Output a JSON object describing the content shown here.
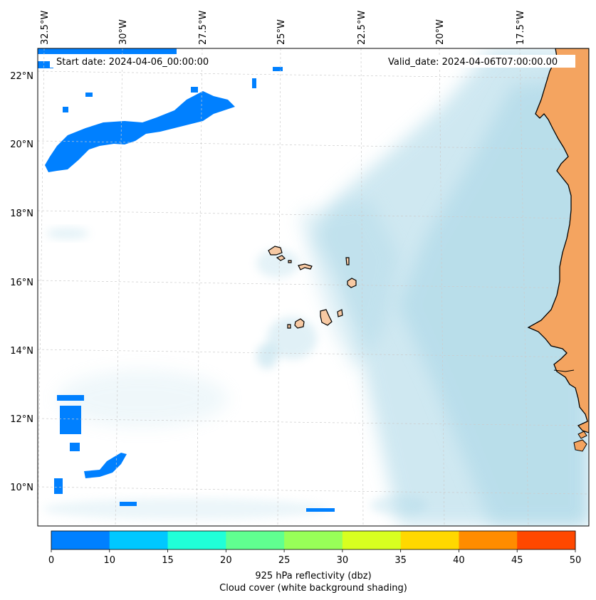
{
  "header": {
    "start_date": "Start date: 2024-04-06_00:00:00",
    "valid_date": "Valid_date: 2024-04-06T07:00:00.00"
  },
  "axes": {
    "lon_labels": [
      "32.5°W",
      "30°W",
      "27.5°W",
      "25°W",
      "22.5°W",
      "20°W",
      "17.5°W"
    ],
    "lat_labels": [
      "22°N",
      "20°N",
      "18°N",
      "16°N",
      "14°N",
      "12°N",
      "10°N"
    ]
  },
  "colorbar": {
    "ticks": [
      "0",
      "10",
      "15",
      "20",
      "25",
      "30",
      "35",
      "40",
      "45",
      "50"
    ],
    "colors": [
      "#0080ff",
      "#00c8ff",
      "#20ffd8",
      "#60ff90",
      "#98ff58",
      "#d8ff20",
      "#ffd800",
      "#ff8c00",
      "#ff4800"
    ],
    "label_line1": "925 hPa reflectivity (dbz)",
    "label_line2": "Cloud cover (white background shading)"
  },
  "map_colors": {
    "ocean": "#ffffff",
    "cloud": "#a8d6e6",
    "land": "#f4a460",
    "island": "#f7c9a3",
    "reflectivity": "#0080ff",
    "grid": "#cccccc"
  }
}
